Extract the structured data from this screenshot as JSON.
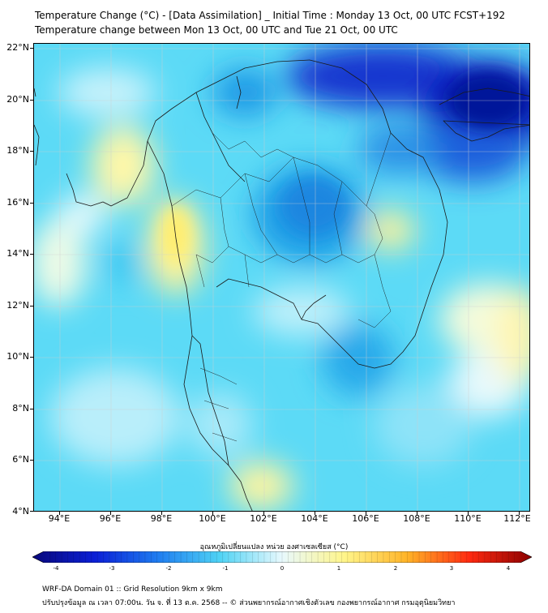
{
  "title_line1": "Temperature Change (°C) - [Data Assimilation] _ Initial Time : Monday 13 Oct, 00 UTC FCST+192",
  "title_line2": "Temperature change between Mon 13 Oct, 00 UTC and Tue 21 Oct, 00 UTC",
  "lat_labels": [
    "22°N",
    "20°N",
    "18°N",
    "16°N",
    "14°N",
    "12°N",
    "10°N",
    "8°N",
    "6°N",
    "4°N"
  ],
  "lon_labels": [
    "94°E",
    "96°E",
    "98°E",
    "100°E",
    "102°E",
    "104°E",
    "106°E",
    "108°E",
    "110°E",
    "112°E"
  ],
  "colorbar": {
    "label": "อุณหภูมิเปลี่ยนแปลง หน่วย องศาเซลเซียส (°C)",
    "ticks": [
      "-4",
      "-3",
      "-2",
      "-1",
      "0",
      "1",
      "2",
      "3",
      "4"
    ],
    "range": [
      -4,
      4
    ],
    "colors": [
      "#08087a",
      "#0b1fd6",
      "#1f7cf0",
      "#4fd3f5",
      "#e8f9fd",
      "#fff58a",
      "#ffb428",
      "#ff2a10",
      "#8a0000"
    ]
  },
  "footer_line1": "WRF-DA Domain 01 :: Grid Resolution 9km x 9km",
  "footer_line2": "ปรับปรุงข้อมูล ณ เวลา 07:00น. วัน จ. ที่ 13 ต.ค. 2568 -- © ส่วนพยากรณ์อากาศเชิงตัวเลข กองพยากรณ์อากาศ กรมอุตุนิยมวิทยา"
}
